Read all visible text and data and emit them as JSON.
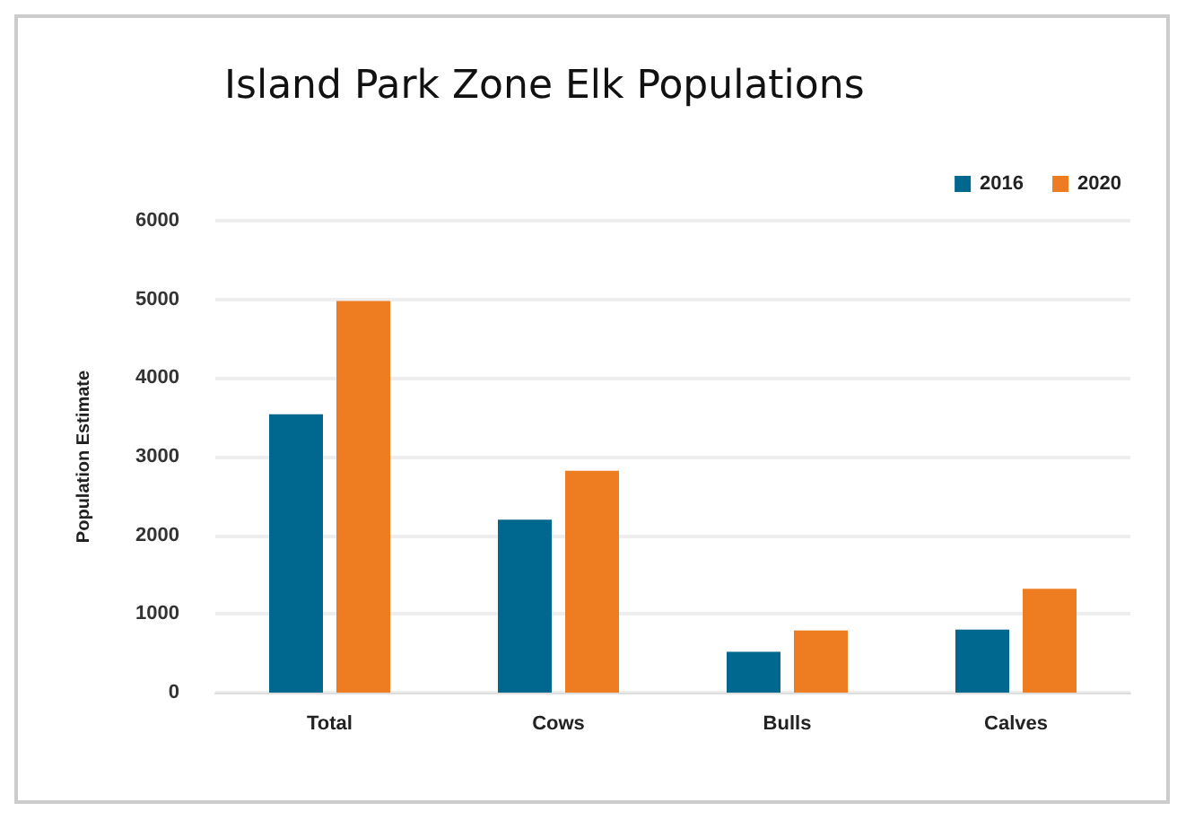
{
  "chart_data": {
    "type": "bar",
    "title": "Island Park Zone Elk Populations",
    "ylabel": "Population Estimate",
    "categories": [
      "Total",
      "Cows",
      "Bulls",
      "Calves"
    ],
    "series": [
      {
        "name": "2016",
        "color": "#00688f",
        "values": [
          3540,
          2200,
          520,
          800
        ]
      },
      {
        "name": "2020",
        "color": "#ee7d22",
        "values": [
          4980,
          2820,
          790,
          1320
        ]
      }
    ],
    "ylim": [
      0,
      6000
    ],
    "yticks": [
      0,
      1000,
      2000,
      3000,
      4000,
      5000,
      6000
    ],
    "grid": "y",
    "legend": "top right"
  }
}
